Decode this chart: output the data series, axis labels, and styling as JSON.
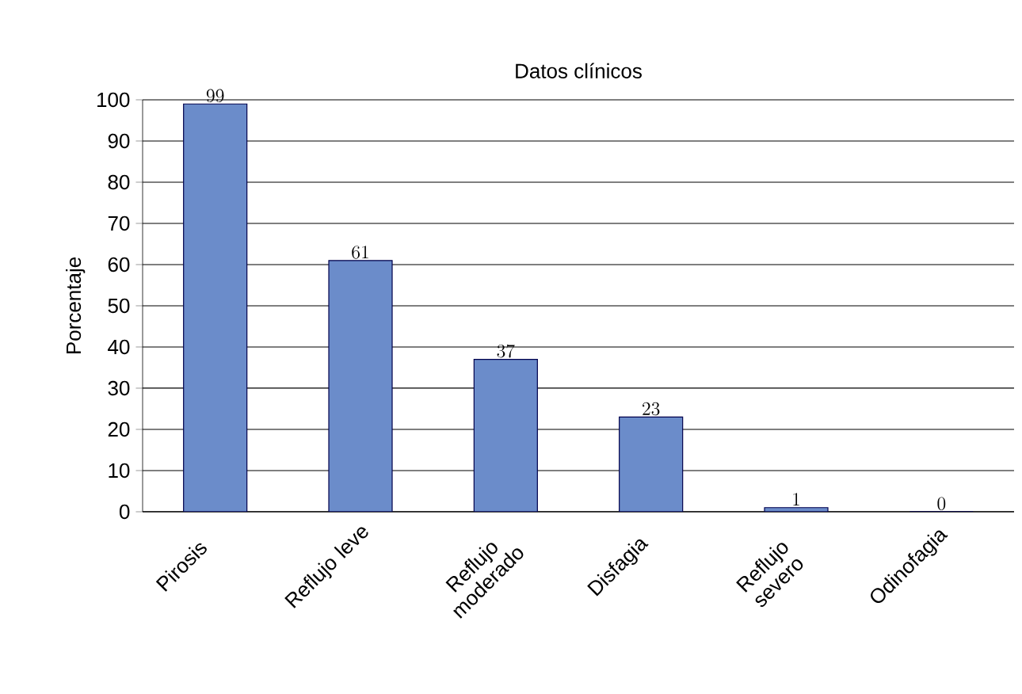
{
  "chart_data": {
    "type": "bar",
    "title": "Datos clínicos",
    "ylabel": "Porcentaje",
    "categories": [
      "Pirosis",
      "Reflujo leve",
      "Reflujo moderado",
      "Disfagia",
      "Reflujo severo",
      "Odinofagia"
    ],
    "values": [
      99,
      61,
      37,
      23,
      1,
      0
    ],
    "color": "#6b8cca",
    "ylim": [
      0,
      100
    ],
    "yticks": [
      0,
      10,
      20,
      30,
      40,
      50,
      60,
      70,
      80,
      90,
      100
    ],
    "grid": "y",
    "data_labels": true
  }
}
